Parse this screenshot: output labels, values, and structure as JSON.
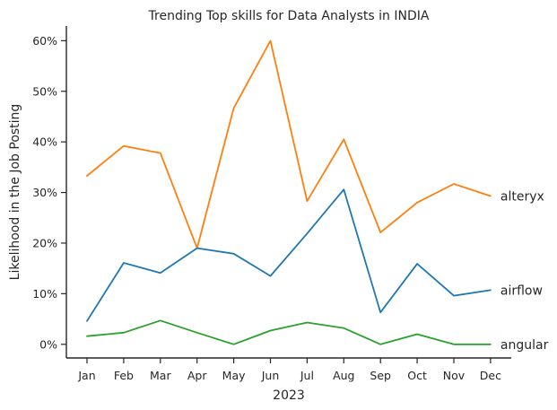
{
  "chart_data": {
    "type": "line",
    "title": "Trending Top skills for Data Analysts in INDIA",
    "xlabel": "2023",
    "ylabel": "Likelihood in the Job Posting",
    "categories": [
      "Jan",
      "Feb",
      "Mar",
      "Apr",
      "May",
      "Jun",
      "Jul",
      "Aug",
      "Sep",
      "Oct",
      "Nov",
      "Dec"
    ],
    "ylim": [
      -2.7,
      62.9
    ],
    "yticks": [
      0,
      10,
      20,
      30,
      40,
      50,
      60
    ],
    "ytick_labels": [
      "0%",
      "10%",
      "20%",
      "30%",
      "40%",
      "50%",
      "60%"
    ],
    "grid": false,
    "legend": "none (series labeled at line ends)",
    "series": [
      {
        "name": "alteryx",
        "color": "#ff7f0e",
        "values": [
          33.3,
          39.2,
          37.8,
          19.0,
          46.7,
          60.0,
          28.3,
          40.5,
          22.1,
          28.0,
          31.7,
          29.3
        ]
      },
      {
        "name": "airflow",
        "color": "#1f77b4",
        "values": [
          4.6,
          16.1,
          14.1,
          19.0,
          17.9,
          13.5,
          21.9,
          30.6,
          6.3,
          15.9,
          9.6,
          10.7
        ]
      },
      {
        "name": "angular",
        "color": "#2ca02c",
        "values": [
          1.6,
          2.3,
          4.7,
          2.3,
          0.0,
          2.7,
          4.3,
          3.2,
          0.0,
          2.0,
          0.0,
          0.0
        ]
      }
    ]
  }
}
